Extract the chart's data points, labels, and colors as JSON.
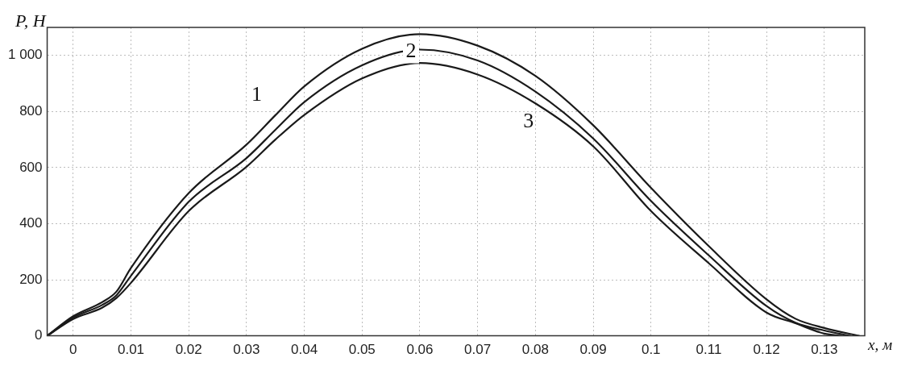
{
  "chart_data": {
    "type": "line",
    "xlabel": "x, м",
    "ylabel": "P, Н",
    "x": [
      -0.0045,
      0,
      0.005,
      0.0075,
      0.01,
      0.02,
      0.03,
      0.035,
      0.04,
      0.05,
      0.06,
      0.07,
      0.08,
      0.09,
      0.1,
      0.11,
      0.12,
      0.125,
      0.13,
      0.136
    ],
    "series": [
      {
        "name": "1",
        "color": "#1a1a1a",
        "values": [
          0,
          70,
          120,
          158,
          242,
          509,
          682,
          787,
          890,
          1024,
          1076,
          1035,
          927,
          751,
          528,
          320,
          130,
          61,
          28,
          0
        ]
      },
      {
        "name": "2",
        "color": "#1a1a1a",
        "x": [
          -0.0045,
          0,
          0.005,
          0.0075,
          0.01,
          0.02,
          0.03,
          0.035,
          0.04,
          0.05,
          0.06,
          0.07,
          0.08,
          0.09,
          0.1,
          0.11,
          0.12,
          0.125,
          0.13,
          0.1345
        ],
        "values": [
          0,
          65,
          110,
          145,
          214,
          478,
          634,
          735,
          834,
          965,
          1021,
          982,
          871,
          704,
          481,
          287,
          106,
          47,
          19,
          0
        ]
      },
      {
        "name": "3",
        "color": "#1a1a1a",
        "x": [
          -0.0045,
          0,
          0.005,
          0.0075,
          0.01,
          0.02,
          0.03,
          0.035,
          0.04,
          0.05,
          0.06,
          0.07,
          0.08,
          0.09,
          0.1,
          0.11,
          0.12,
          0.125,
          0.13,
          0.133
        ],
        "values": [
          0,
          60,
          100,
          135,
          189,
          445,
          603,
          700,
          788,
          918,
          973,
          932,
          829,
          676,
          445,
          259,
          83,
          45,
          8,
          0
        ]
      }
    ],
    "xlim": [
      -0.0045,
      0.137
    ],
    "ylim": [
      0,
      1100
    ],
    "xticks": [
      0,
      0.01,
      0.02,
      0.03,
      0.04,
      0.05,
      0.06,
      0.07,
      0.08,
      0.09,
      0.1,
      0.11,
      0.12,
      0.13
    ],
    "yticks": [
      0,
      200,
      400,
      600,
      800,
      {
        "value": 1000,
        "label": "1 000"
      }
    ],
    "grid": true,
    "marker": "none",
    "line_style": "solid",
    "legend": false
  }
}
